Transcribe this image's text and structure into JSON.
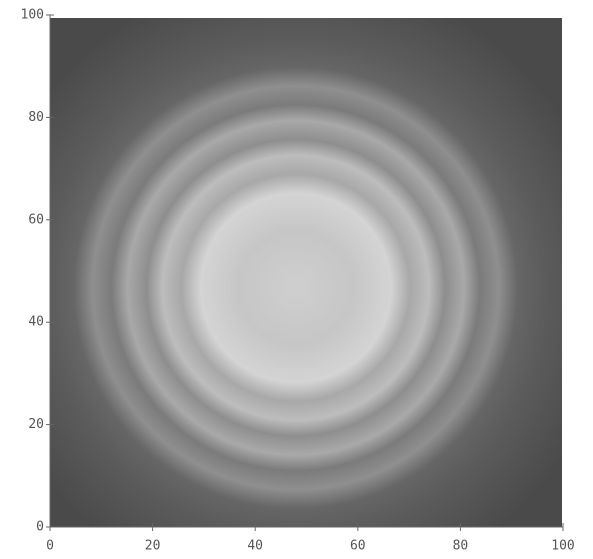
{
  "chart_data": {
    "type": "image",
    "xlim": [
      0,
      100
    ],
    "ylim": [
      0,
      100
    ],
    "xticks": [
      0,
      20,
      40,
      60,
      80,
      100
    ],
    "yticks": [
      0,
      20,
      40,
      60,
      80,
      100
    ]
  }
}
